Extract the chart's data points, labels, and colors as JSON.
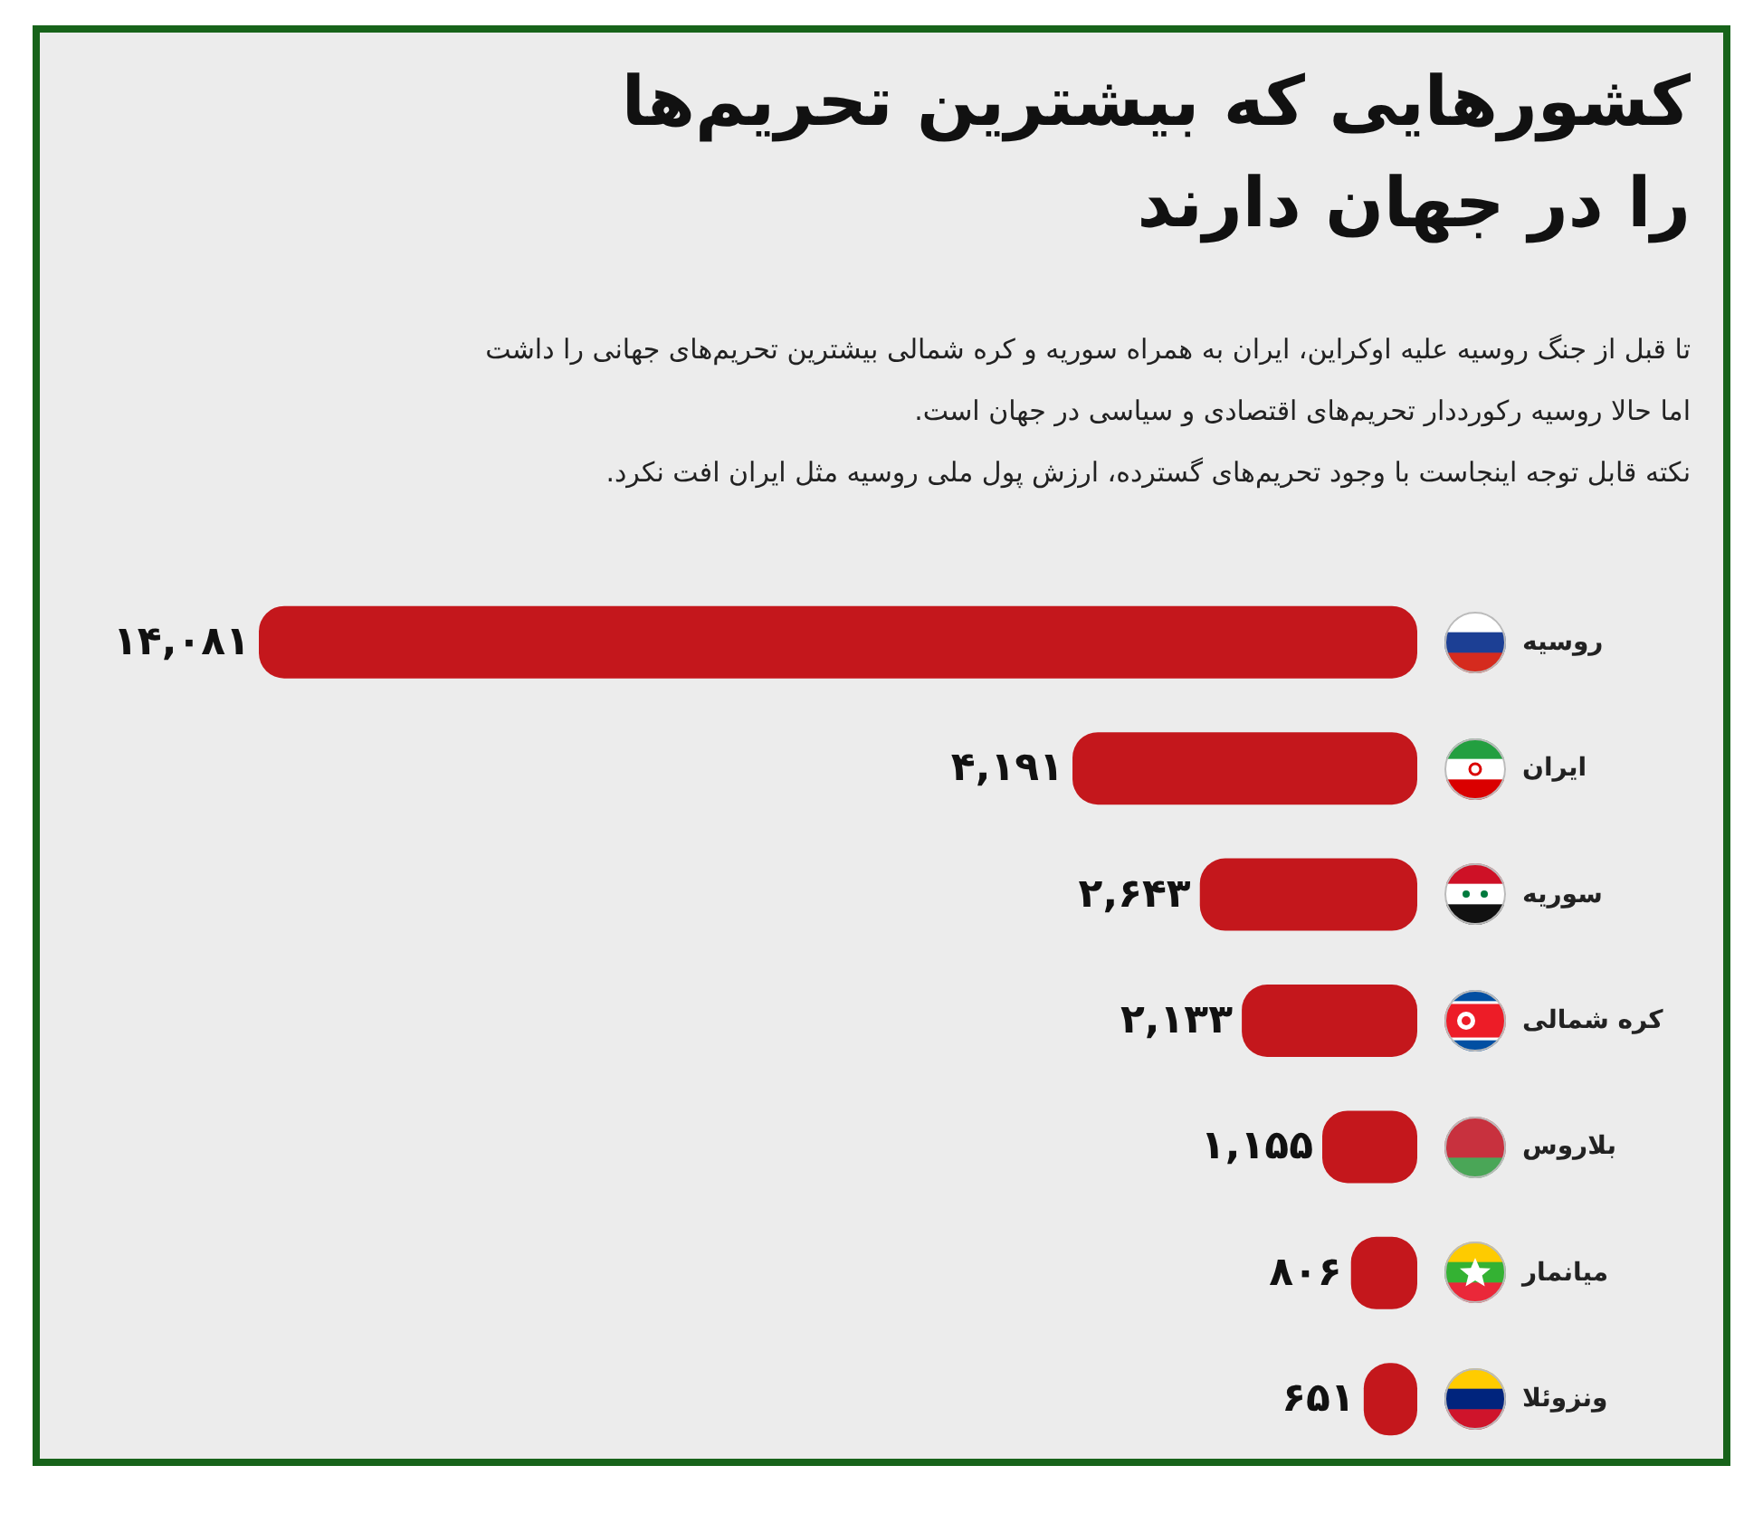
{
  "chart_data": {
    "type": "bar",
    "orientation": "horizontal",
    "title": "کشورهایی که بیشترین تحریم‌ها را در جهان دارند",
    "subtitle": "تا قبل از جنگ روسیه علیه اوکراین، ایران به همراه سوریه و کره شمالی بیشترین تحریم‌های جهانی را داشت\nاما حالا روسیه رکورددار تحریم‌های اقتصادی و سیاسی در جهان است.\nنکته قابل توجه اینجاست با وجود تحریم‌های گسترده، ارزش پول ملی روسیه مثل ایران افت نکرد.",
    "categories": [
      "روسیه",
      "ایران",
      "سوریه",
      "کره شمالی",
      "بلاروس",
      "میانمار",
      "ونزوئلا"
    ],
    "values": [
      14081,
      4191,
      2643,
      2133,
      1155,
      806,
      651
    ],
    "value_labels": [
      "۱۴,۰۸۱",
      "۴,۱۹۱",
      "۲,۶۴۳",
      "۲,۱۳۳",
      "۱,۱۵۵",
      "۸۰۶",
      "۶۵۱"
    ],
    "color": "#c4171c",
    "tick_labels": "y"
  }
}
